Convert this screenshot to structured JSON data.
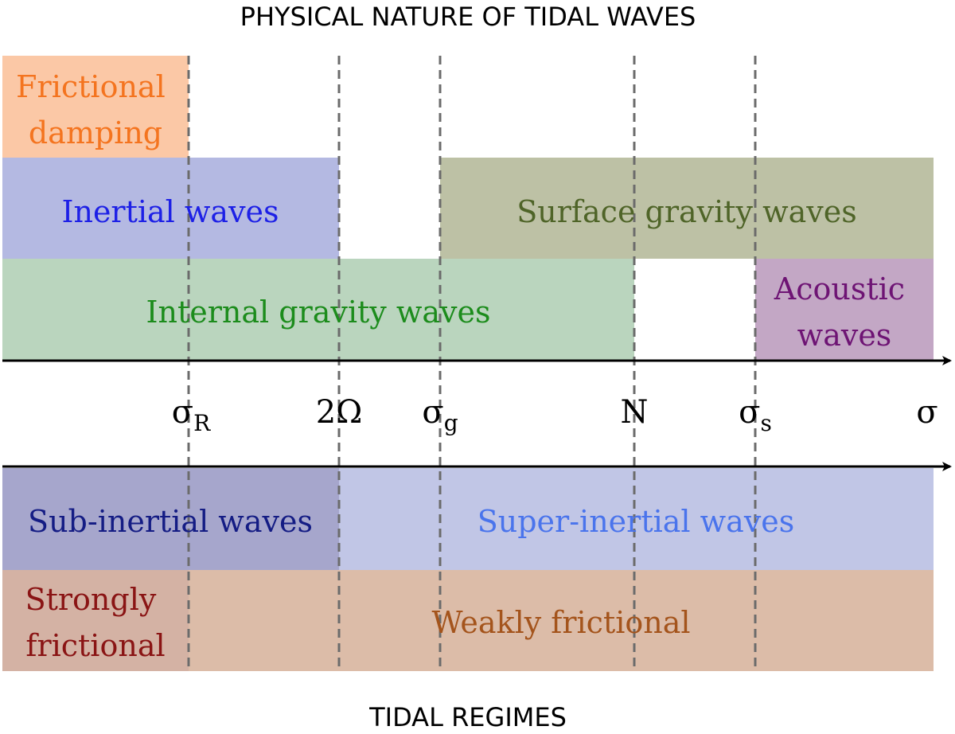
{
  "header": {
    "title": "PHYSICAL NATURE OF TIDAL WAVES"
  },
  "footer": {
    "title": "TIDAL REGIMES"
  },
  "axis": {
    "labels": [
      {
        "id": "sigma-r",
        "base": "σ",
        "sub": "R"
      },
      {
        "id": "two-omega",
        "base": "2Ω",
        "sub": ""
      },
      {
        "id": "sigma-g",
        "base": "σ",
        "sub": "g"
      },
      {
        "id": "n",
        "base": "N",
        "sub": ""
      },
      {
        "id": "sigma-s",
        "base": "σ",
        "sub": "s"
      },
      {
        "id": "sigma",
        "base": "σ",
        "sub": ""
      }
    ]
  },
  "waves": [
    {
      "id": "frictional-damping",
      "lines": [
        "Frictional",
        "damping"
      ],
      "fill": "#fbc8a6",
      "text_color": "#f4741f"
    },
    {
      "id": "inertial-waves",
      "lines": [
        "Inertial waves"
      ],
      "fill": "#b4b9e2",
      "text_color": "#1d20e6"
    },
    {
      "id": "surface-gravity-waves",
      "lines": [
        "Surface gravity waves"
      ],
      "fill": "#bdc1a5",
      "text_color": "#4f6428"
    },
    {
      "id": "internal-gravity-waves",
      "lines": [
        "Internal gravity waves"
      ],
      "fill": "#bad5be",
      "text_color": "#1c8c1c"
    },
    {
      "id": "acoustic-waves",
      "lines": [
        "Acoustic",
        "waves"
      ],
      "fill": "#c3a7c5",
      "text_color": "#6e1474"
    }
  ],
  "regimes": [
    {
      "id": "sub-inertial-waves",
      "lines": [
        "Sub-inertial waves"
      ],
      "fill": "#a6a6cc",
      "text_color": "#141c84"
    },
    {
      "id": "super-inertial-waves",
      "lines": [
        "Super-inertial waves"
      ],
      "fill": "#c1c6e6",
      "text_color": "#4a74ec"
    },
    {
      "id": "strongly-frictional",
      "lines": [
        "Strongly",
        "frictional"
      ],
      "fill": "#d4b2a4",
      "text_color": "#8a1414"
    },
    {
      "id": "weakly-frictional",
      "lines": [
        "Weakly frictional"
      ],
      "fill": "#dcbca8",
      "text_color": "#a4541c"
    }
  ]
}
